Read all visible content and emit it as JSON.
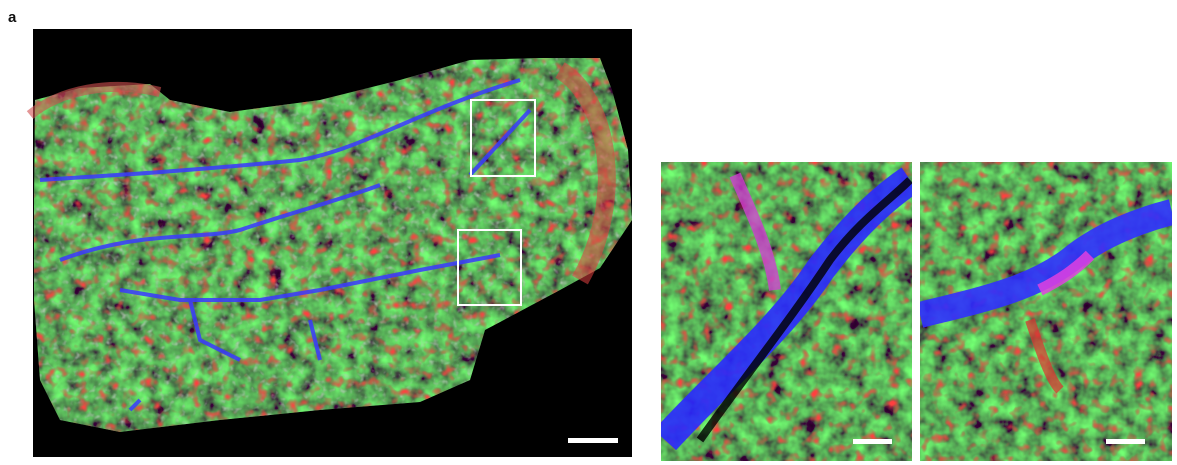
{
  "panel_label": "a"
}
